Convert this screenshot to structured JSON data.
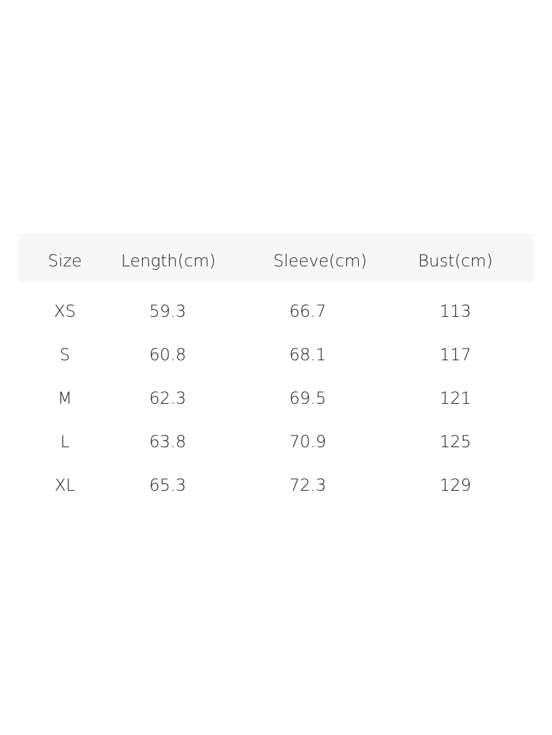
{
  "table": {
    "header": [
      "Size",
      "Length(cm)",
      "Sleeve(cm)",
      "Bust(cm)"
    ],
    "rows": [
      [
        "XS",
        59.3,
        66.7,
        113
      ],
      [
        "S",
        60.8,
        68.1,
        117
      ],
      [
        "M",
        62.3,
        69.5,
        121
      ],
      [
        "L",
        63.8,
        70.9,
        125
      ],
      [
        "XL",
        65.3,
        72.3,
        129
      ]
    ]
  }
}
